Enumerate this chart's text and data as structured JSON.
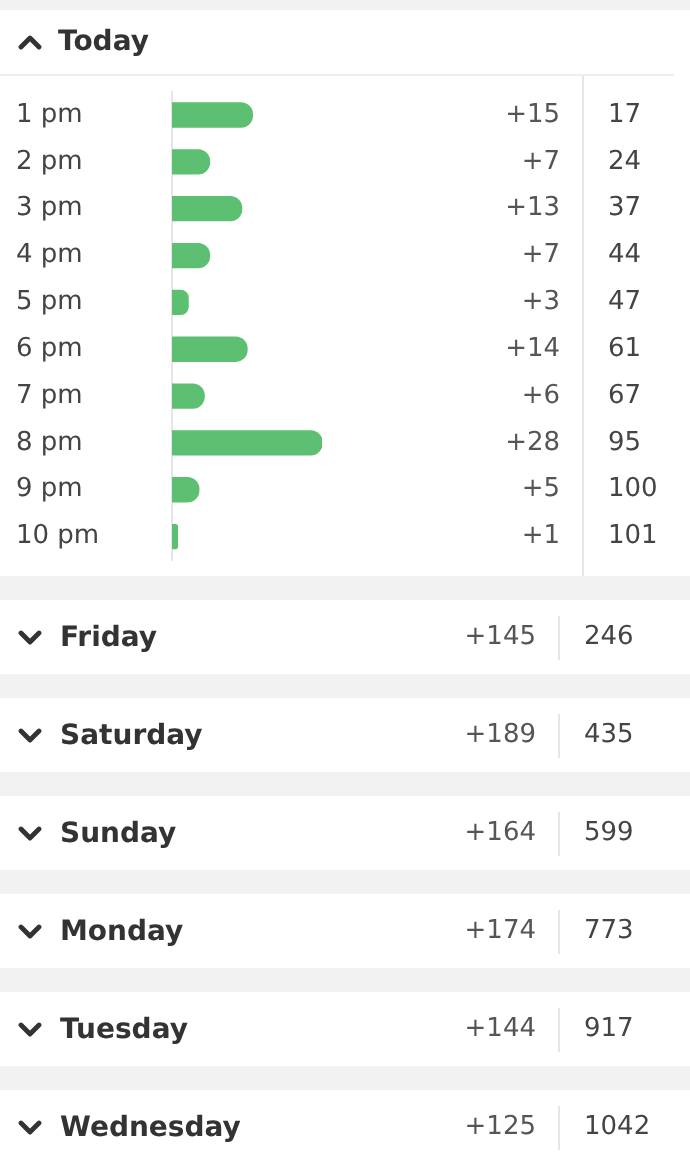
{
  "chart_data": [
    {
      "type": "bar",
      "orientation": "horizontal",
      "title": "Today",
      "color": "#5cbf72",
      "categories": [
        "1 pm",
        "2 pm",
        "3 pm",
        "4 pm",
        "5 pm",
        "6 pm",
        "7 pm",
        "8 pm",
        "9 pm",
        "10 pm"
      ],
      "values": [
        15,
        7,
        13,
        7,
        3,
        14,
        6,
        28,
        5,
        1
      ],
      "value_labels": [
        "+15",
        "+7",
        "+13",
        "+7",
        "+3",
        "+14",
        "+6",
        "+28",
        "+5",
        "+1"
      ],
      "annotations": [
        "17",
        "24",
        "37",
        "44",
        "47",
        "61",
        "67",
        "95",
        "100",
        "101"
      ],
      "grid": false,
      "legend": false
    },
    {
      "type": "other",
      "categories": [
        "Friday",
        "Saturday",
        "Sunday",
        "Monday",
        "Tuesday",
        "Wednesday"
      ],
      "value_labels": [
        "+145",
        "+189",
        "+164",
        "+174",
        "+144",
        "+125"
      ],
      "annotations": [
        "246",
        "435",
        "599",
        "773",
        "917",
        "1042"
      ]
    }
  ]
}
